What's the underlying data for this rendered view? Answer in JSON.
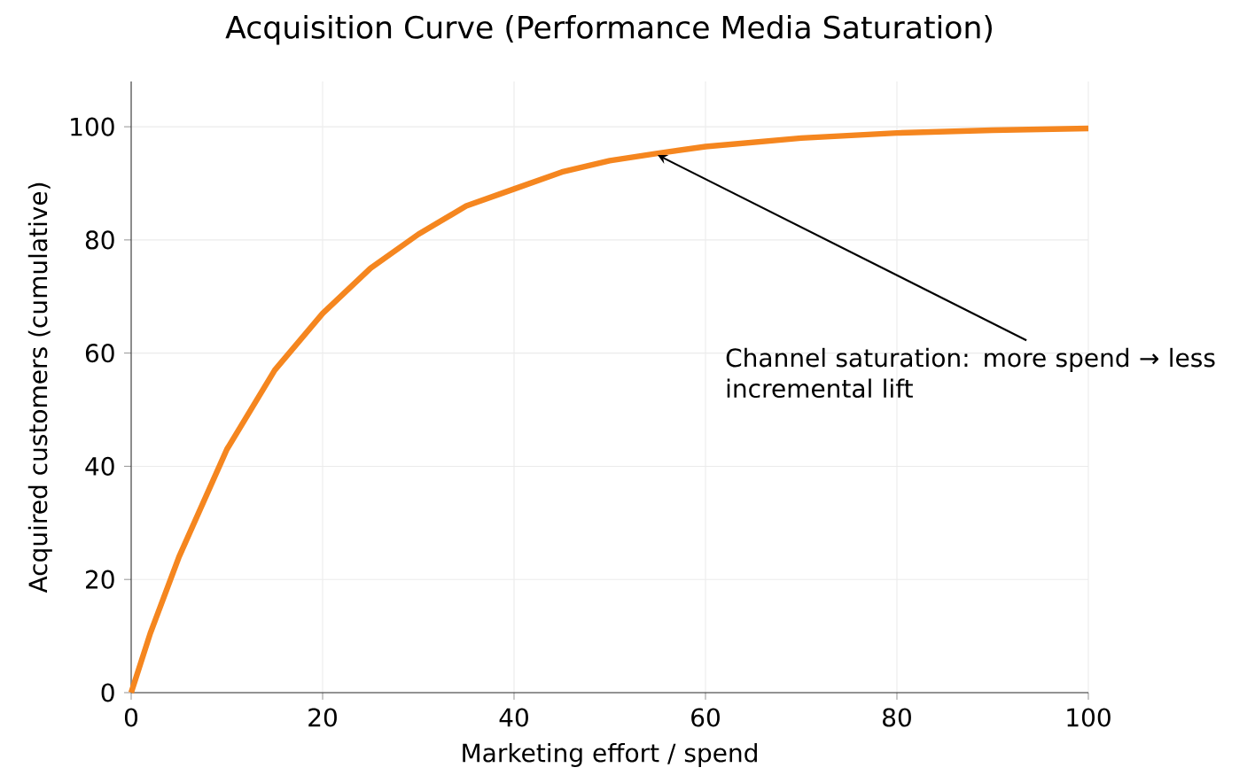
{
  "chart_data": {
    "type": "line",
    "title": "Acquisition Curve (Performance Media Saturation)",
    "xlabel": "Marketing effort / spend",
    "ylabel": "Acquired customers (cumulative)",
    "x": [
      0,
      2,
      5,
      10,
      15,
      20,
      25,
      30,
      35,
      40,
      45,
      50,
      55,
      60,
      70,
      80,
      90,
      100
    ],
    "series": [
      {
        "color": "#f5861f",
        "values": [
          0,
          10.5,
          24,
          43,
          57,
          67,
          75,
          81,
          86,
          89,
          92,
          94,
          95.3,
          96.5,
          98,
          98.9,
          99.4,
          99.7
        ]
      }
    ],
    "xlim": [
      0,
      100
    ],
    "ylim": [
      0,
      108
    ],
    "xticks": [
      0,
      20,
      40,
      60,
      80,
      100
    ],
    "yticks": [
      0,
      20,
      40,
      60,
      80,
      100
    ],
    "grid": true,
    "marker": "none",
    "line_style": "solid",
    "annotations": [
      {
        "text": "Channel saturation: more spend → less incremental lift",
        "x": 55,
        "y": 95
      }
    ]
  }
}
